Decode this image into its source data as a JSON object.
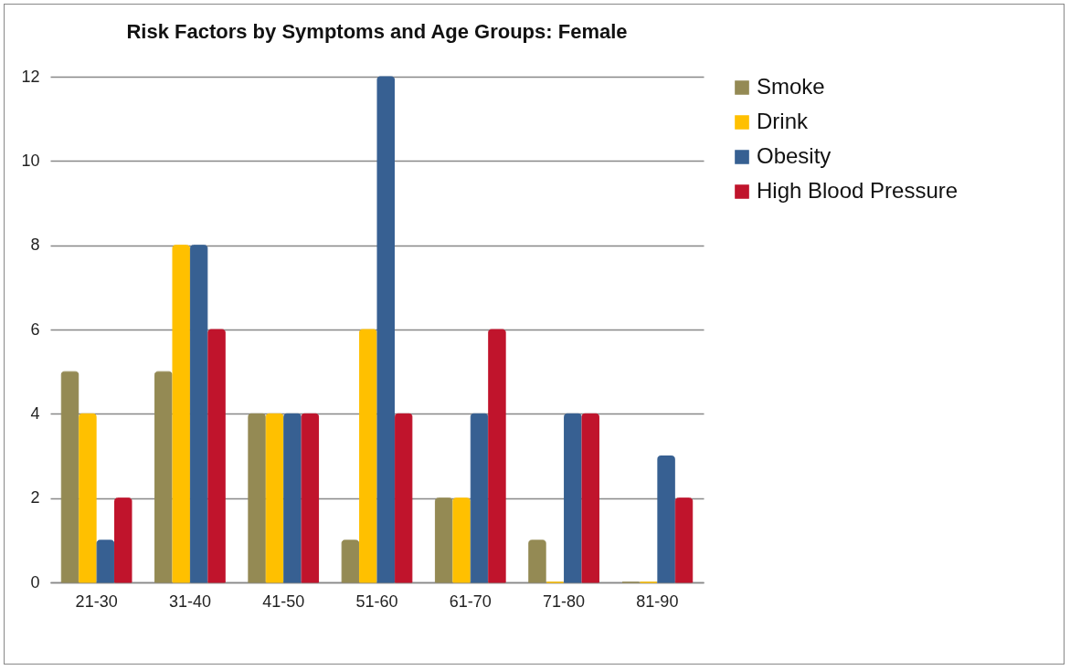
{
  "chart_data": {
    "type": "bar",
    "title": "Risk Factors by Symptoms and Age Groups: Female",
    "categories": [
      "21-30",
      "31-40",
      "41-50",
      "51-60",
      "61-70",
      "71-80",
      "81-90"
    ],
    "series": [
      {
        "name": "Smoke",
        "color": "#948a54",
        "values": [
          5,
          5,
          4,
          1,
          2,
          1,
          0
        ]
      },
      {
        "name": "Drink",
        "color": "#ffc000",
        "values": [
          4,
          8,
          4,
          6,
          2,
          0,
          0
        ]
      },
      {
        "name": "Obesity",
        "color": "#376092",
        "values": [
          1,
          8,
          4,
          12,
          4,
          4,
          3
        ]
      },
      {
        "name": "High Blood Pressure",
        "color": "#c0142c",
        "values": [
          2,
          6,
          4,
          4,
          6,
          4,
          2
        ]
      }
    ],
    "ylim": [
      0,
      12
    ],
    "yticks": [
      0,
      2,
      4,
      6,
      8,
      10,
      12
    ],
    "grid": "y",
    "legend": "right"
  }
}
